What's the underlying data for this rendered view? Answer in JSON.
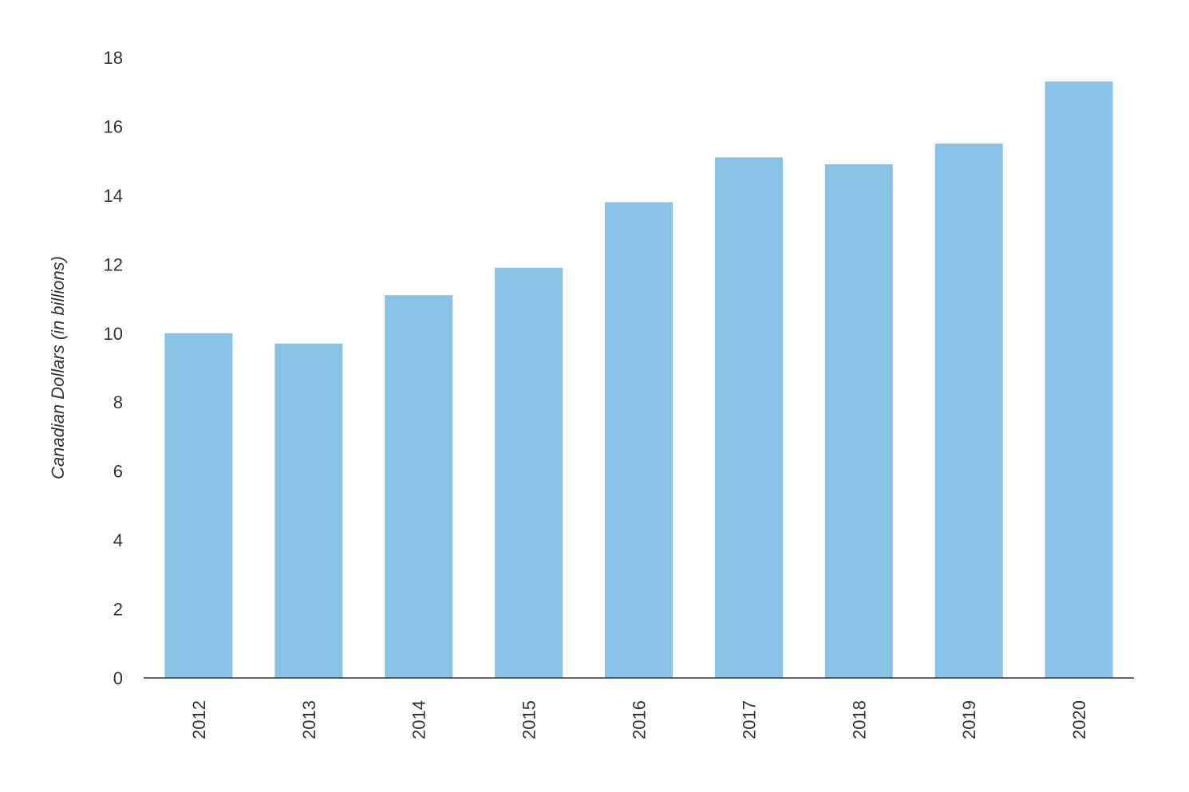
{
  "chart_data": {
    "type": "bar",
    "title": "",
    "xlabel": "",
    "ylabel": "Canadian Dollars (in billions)",
    "categories": [
      "2012",
      "2013",
      "2014",
      "2015",
      "2016",
      "2017",
      "2018",
      "2019",
      "2020"
    ],
    "values": [
      10.0,
      9.7,
      11.1,
      11.9,
      13.8,
      15.1,
      14.9,
      15.5,
      17.3
    ],
    "ylim": [
      0,
      18
    ],
    "yticks": [
      "0",
      "2",
      "4",
      "6",
      "8",
      "10",
      "12",
      "14",
      "16",
      "18"
    ],
    "grid": false,
    "bar_color": "#89c2e5",
    "axis_color": "#333333"
  }
}
